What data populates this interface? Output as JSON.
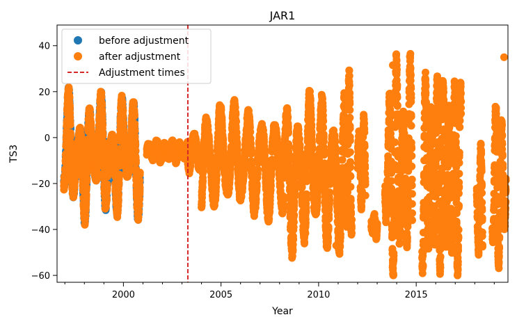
{
  "chart_data": {
    "type": "scatter",
    "title": "JAR1",
    "xlabel": "Year",
    "ylabel": "TS3",
    "xlim": [
      1996.6,
      2019.7
    ],
    "ylim": [
      -63,
      49
    ],
    "xticks": [
      2000,
      2005,
      2010,
      2015
    ],
    "yticks": [
      -60,
      -40,
      -20,
      0,
      20,
      40
    ],
    "ytick_labels": [
      "−60",
      "−40",
      "−20",
      "0",
      "20",
      "40"
    ],
    "legend_position": "top-left",
    "grid": false,
    "series": [
      {
        "name": "before adjustment",
        "color": "#1f77b4",
        "marker": "circle",
        "segments": [
          {
            "x0": 1996.95,
            "x1": 2000.85,
            "center": -8,
            "amp_min": 6,
            "amp_max": 28,
            "period": 0.55,
            "noise": 3
          }
        ]
      },
      {
        "name": "after adjustment",
        "color": "#ff7f0e",
        "marker": "circle",
        "segments": [
          {
            "x0": 1996.95,
            "x1": 2000.85,
            "center": -8,
            "amp_min": 6,
            "amp_max": 28,
            "period": 0.55,
            "noise": 3
          },
          {
            "x0": 2001.2,
            "x1": 2003.3,
            "center": -6,
            "amp_min": 2,
            "amp_max": 4,
            "period": 0.4,
            "noise": 1.5
          },
          {
            "x0": 2003.3,
            "x1": 2004.0,
            "center": -5,
            "amp_min": 5,
            "amp_max": 10,
            "period": 0.5,
            "noise": 2
          },
          {
            "x0": 2004.0,
            "x1": 2008.2,
            "center": -10,
            "amp_min": 12,
            "amp_max": 24,
            "period": 0.7,
            "noise": 3
          },
          {
            "x0": 2008.2,
            "x1": 2011.3,
            "center": -15,
            "amp_min": 15,
            "amp_max": 35,
            "period": 0.6,
            "noise": 4
          },
          {
            "x0": 2011.3,
            "x1": 2011.7,
            "center": -7,
            "amp_min": 20,
            "amp_max": 34,
            "period": 0.25,
            "noise": 3
          },
          {
            "x0": 2012.0,
            "x1": 2012.4,
            "center": -12,
            "amp_min": 10,
            "amp_max": 20,
            "period": 0.25,
            "noise": 3
          },
          {
            "x0": 2012.7,
            "x1": 2013.0,
            "center": -38,
            "amp_min": 2,
            "amp_max": 6,
            "period": 0.2,
            "noise": 2
          },
          {
            "x0": 2013.4,
            "x1": 2014.8,
            "center": -13,
            "amp_min": 20,
            "amp_max": 48,
            "period": 0.35,
            "noise": 5
          },
          {
            "x0": 2015.3,
            "x1": 2017.3,
            "center": -15,
            "amp_min": 25,
            "amp_max": 42,
            "period": 0.3,
            "noise": 5
          },
          {
            "x0": 2018.1,
            "x1": 2018.4,
            "center": -30,
            "amp_min": 10,
            "amp_max": 28,
            "period": 0.25,
            "noise": 3
          },
          {
            "x0": 2018.9,
            "x1": 2019.6,
            "center": -20,
            "amp_min": 15,
            "amp_max": 35,
            "period": 0.3,
            "noise": 4
          }
        ]
      }
    ],
    "isolated_points": [
      {
        "x": 2010.9,
        "y": -47
      },
      {
        "x": 2013.8,
        "y": 31.5
      },
      {
        "x": 2019.5,
        "y": 35
      }
    ],
    "reference_lines": [
      {
        "name": "Adjustment times",
        "x": 2003.3,
        "color": "#d62728",
        "style": "dashed"
      }
    ]
  }
}
